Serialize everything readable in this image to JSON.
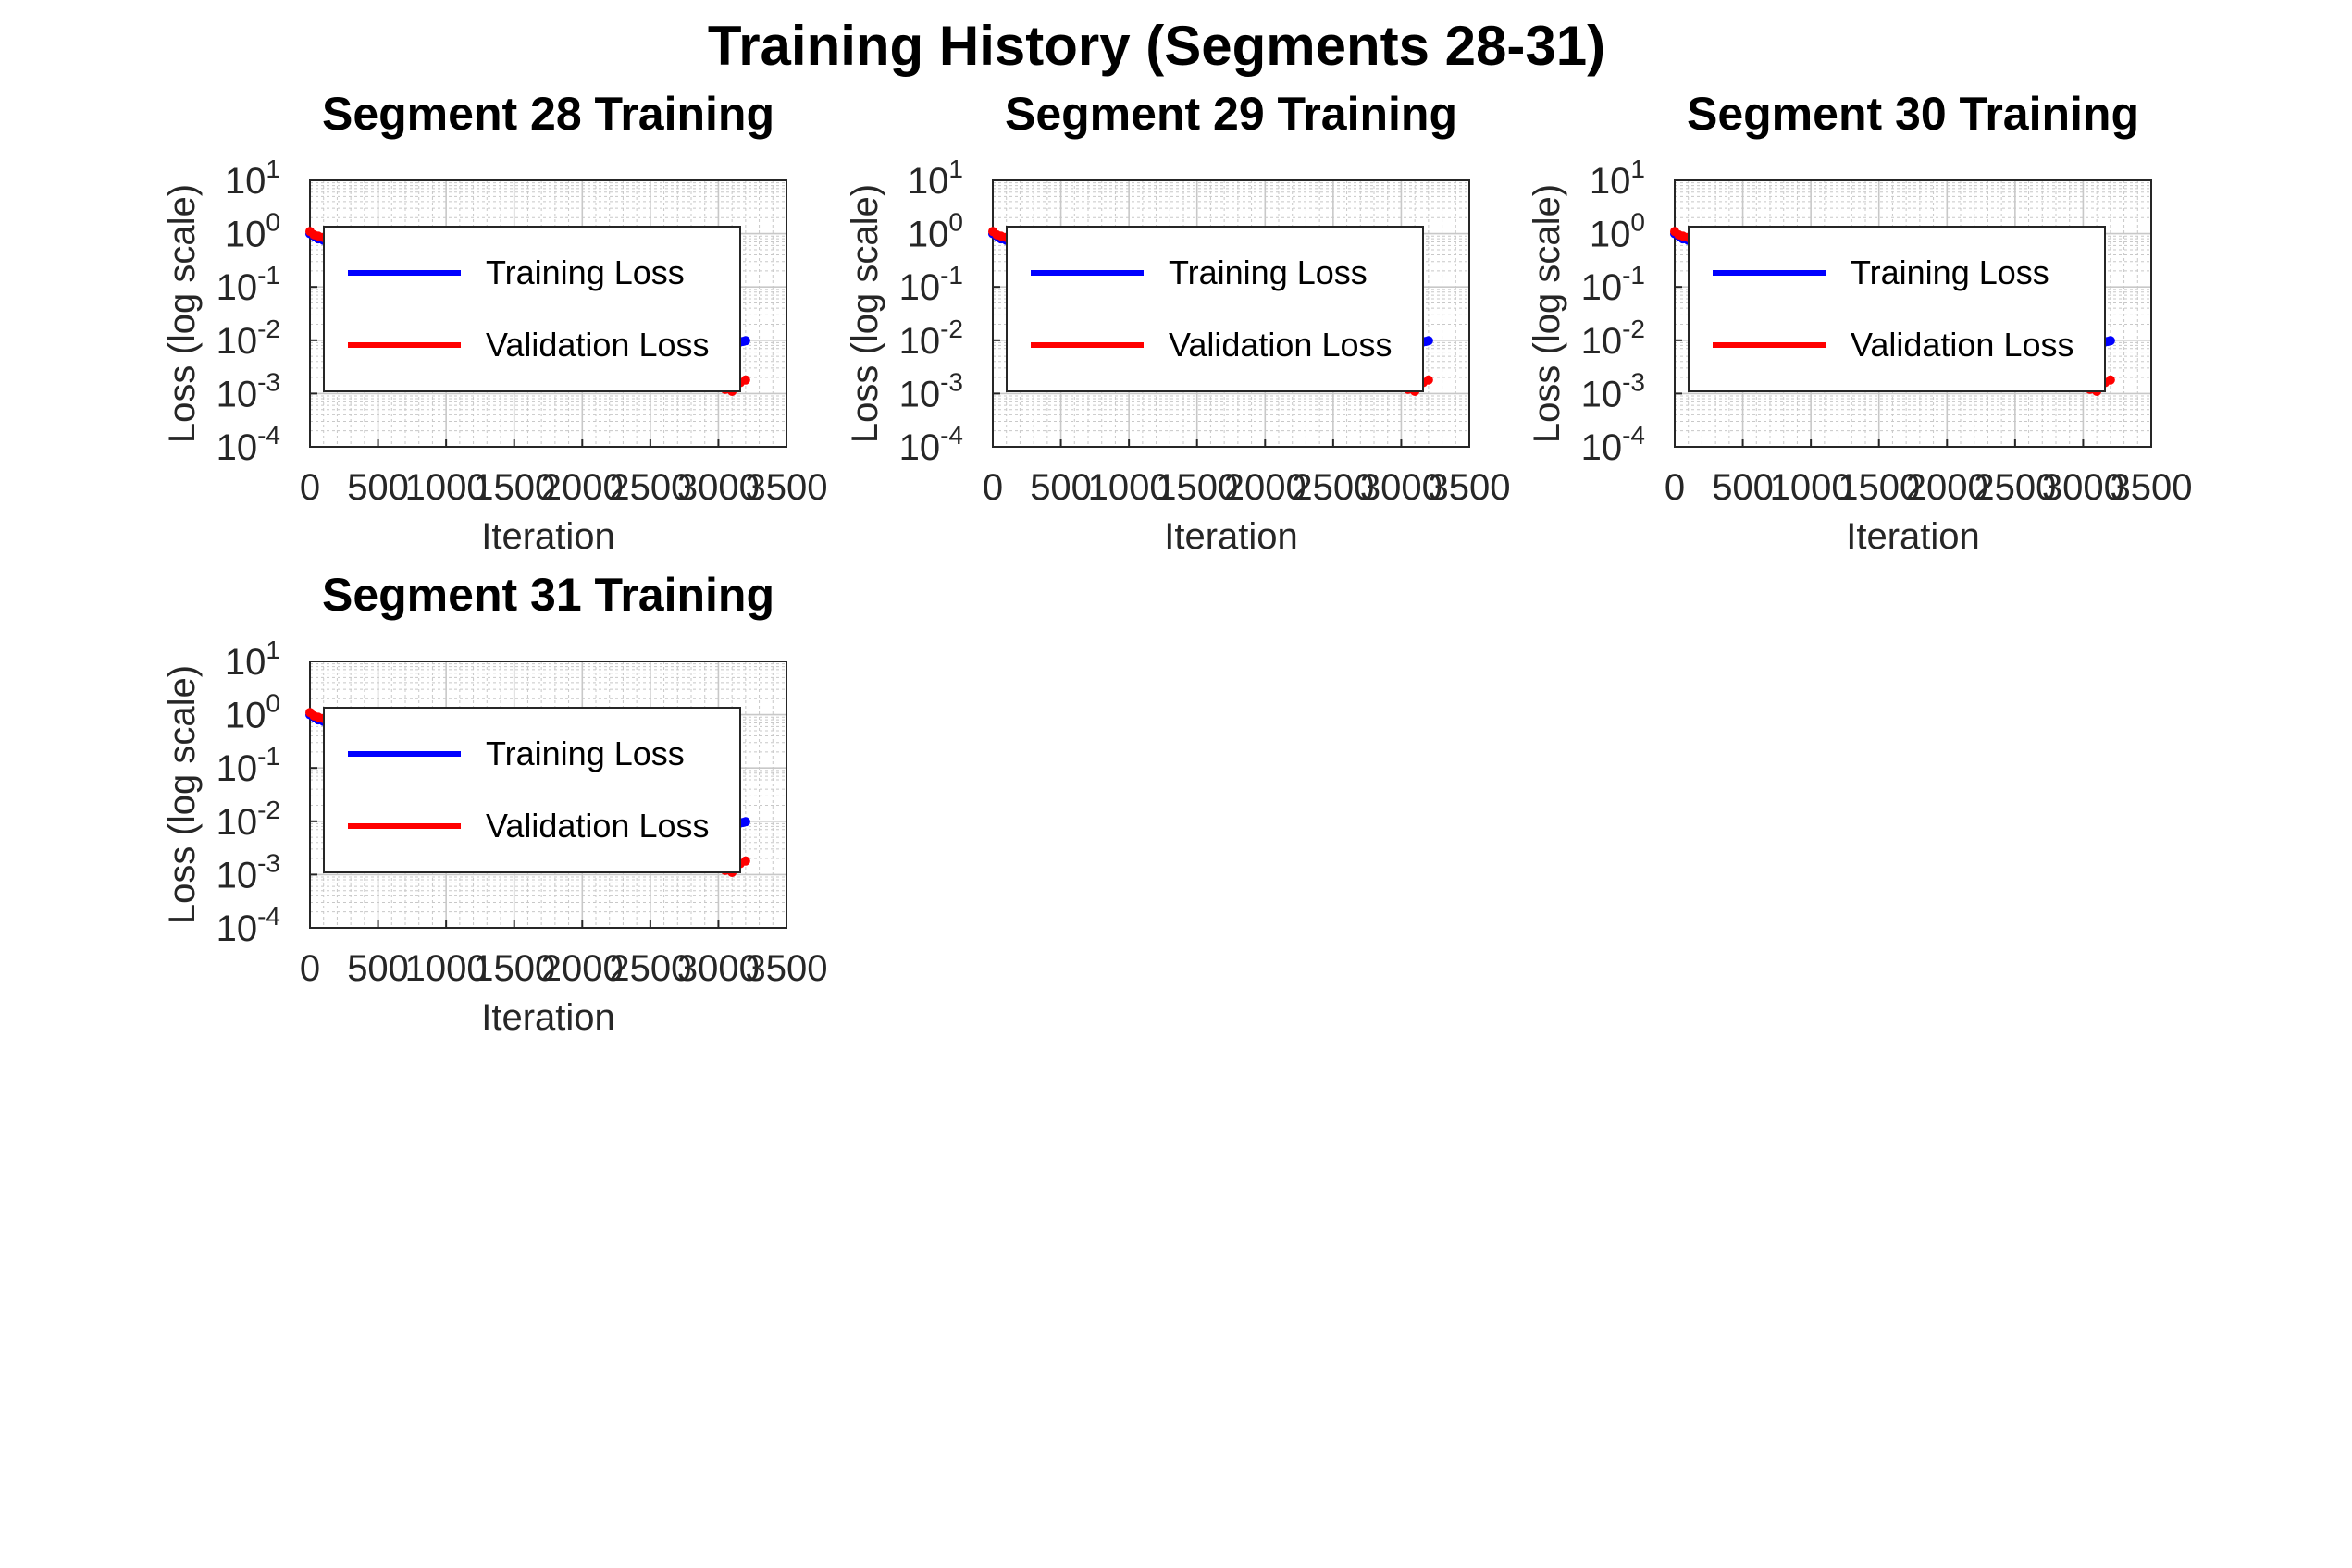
{
  "figure": {
    "title": "Training History (Segments 28-31)"
  },
  "style": {
    "training_color": "#0000ff",
    "validation_color": "#ff0000",
    "grid_color": "#c8c8c8",
    "axis_color": "#262626"
  },
  "chart_data": [
    {
      "type": "line",
      "title": "Segment 28 Training",
      "xlabel": "Iteration",
      "ylabel": "Loss (log scale)",
      "xlim": [
        0,
        3500
      ],
      "xticks": [
        "0",
        "500",
        "1000",
        "1500",
        "2000",
        "2500",
        "3000",
        "3500"
      ],
      "ylim": [
        0.0001,
        10
      ],
      "yscale": "log",
      "yticks": [
        {
          "base": "10",
          "exp": "1"
        },
        {
          "base": "10",
          "exp": "0"
        },
        {
          "base": "10",
          "exp": "-1"
        },
        {
          "base": "10",
          "exp": "-2"
        },
        {
          "base": "10",
          "exp": "-3"
        },
        {
          "base": "10",
          "exp": "-4"
        }
      ],
      "grid": true,
      "legend": "upper-left",
      "series": [
        {
          "name": "Training Loss",
          "x": [
            0,
            30,
            60,
            100,
            3150,
            3180,
            3200
          ],
          "y": [
            1.0,
            0.9,
            0.8,
            0.75,
            0.009,
            0.0095,
            0.0098
          ]
        },
        {
          "name": "Validation Loss",
          "x": [
            0,
            30,
            60,
            100,
            3000,
            3050,
            3100,
            3130,
            3160,
            3200
          ],
          "y": [
            1.1,
            0.95,
            0.9,
            0.85,
            0.0013,
            0.0012,
            0.0011,
            0.0014,
            0.0016,
            0.0018
          ]
        }
      ]
    },
    {
      "type": "line",
      "title": "Segment 29 Training",
      "xlabel": "Iteration",
      "ylabel": "Loss (log scale)",
      "xlim": [
        0,
        3500
      ],
      "xticks": [
        "0",
        "500",
        "1000",
        "1500",
        "2000",
        "2500",
        "3000",
        "3500"
      ],
      "ylim": [
        0.0001,
        10
      ],
      "yscale": "log",
      "yticks": [
        {
          "base": "10",
          "exp": "1"
        },
        {
          "base": "10",
          "exp": "0"
        },
        {
          "base": "10",
          "exp": "-1"
        },
        {
          "base": "10",
          "exp": "-2"
        },
        {
          "base": "10",
          "exp": "-3"
        },
        {
          "base": "10",
          "exp": "-4"
        }
      ],
      "grid": true,
      "legend": "upper-left",
      "series": [
        {
          "name": "Training Loss",
          "x": [
            0,
            30,
            60,
            100,
            3150,
            3180,
            3200
          ],
          "y": [
            1.0,
            0.9,
            0.8,
            0.75,
            0.009,
            0.0095,
            0.0098
          ]
        },
        {
          "name": "Validation Loss",
          "x": [
            0,
            30,
            60,
            100,
            3000,
            3050,
            3100,
            3130,
            3160,
            3200
          ],
          "y": [
            1.1,
            0.95,
            0.9,
            0.85,
            0.0013,
            0.0012,
            0.0011,
            0.0014,
            0.0016,
            0.0018
          ]
        }
      ]
    },
    {
      "type": "line",
      "title": "Segment 30 Training",
      "xlabel": "Iteration",
      "ylabel": "Loss (log scale)",
      "xlim": [
        0,
        3500
      ],
      "xticks": [
        "0",
        "500",
        "1000",
        "1500",
        "2000",
        "2500",
        "3000",
        "3500"
      ],
      "ylim": [
        0.0001,
        10
      ],
      "yscale": "log",
      "yticks": [
        {
          "base": "10",
          "exp": "1"
        },
        {
          "base": "10",
          "exp": "0"
        },
        {
          "base": "10",
          "exp": "-1"
        },
        {
          "base": "10",
          "exp": "-2"
        },
        {
          "base": "10",
          "exp": "-3"
        },
        {
          "base": "10",
          "exp": "-4"
        }
      ],
      "grid": true,
      "legend": "upper-left",
      "series": [
        {
          "name": "Training Loss",
          "x": [
            0,
            30,
            60,
            100,
            3150,
            3180,
            3200
          ],
          "y": [
            1.0,
            0.9,
            0.8,
            0.75,
            0.009,
            0.0095,
            0.0098
          ]
        },
        {
          "name": "Validation Loss",
          "x": [
            0,
            30,
            60,
            100,
            3000,
            3050,
            3100,
            3130,
            3160,
            3200
          ],
          "y": [
            1.1,
            0.95,
            0.9,
            0.85,
            0.0013,
            0.0012,
            0.0011,
            0.0014,
            0.0016,
            0.0018
          ]
        }
      ]
    },
    {
      "type": "line",
      "title": "Segment 31 Training",
      "xlabel": "Iteration",
      "ylabel": "Loss (log scale)",
      "xlim": [
        0,
        3500
      ],
      "xticks": [
        "0",
        "500",
        "1000",
        "1500",
        "2000",
        "2500",
        "3000",
        "3500"
      ],
      "ylim": [
        0.0001,
        10
      ],
      "yscale": "log",
      "yticks": [
        {
          "base": "10",
          "exp": "1"
        },
        {
          "base": "10",
          "exp": "0"
        },
        {
          "base": "10",
          "exp": "-1"
        },
        {
          "base": "10",
          "exp": "-2"
        },
        {
          "base": "10",
          "exp": "-3"
        },
        {
          "base": "10",
          "exp": "-4"
        }
      ],
      "grid": true,
      "legend": "upper-left",
      "series": [
        {
          "name": "Training Loss",
          "x": [
            0,
            30,
            60,
            100,
            3150,
            3180,
            3200
          ],
          "y": [
            1.0,
            0.9,
            0.8,
            0.75,
            0.009,
            0.0095,
            0.0098
          ]
        },
        {
          "name": "Validation Loss",
          "x": [
            0,
            30,
            60,
            100,
            3000,
            3050,
            3100,
            3130,
            3160,
            3200
          ],
          "y": [
            1.1,
            0.95,
            0.9,
            0.85,
            0.0013,
            0.0012,
            0.0011,
            0.0014,
            0.0016,
            0.0018
          ]
        }
      ]
    }
  ]
}
